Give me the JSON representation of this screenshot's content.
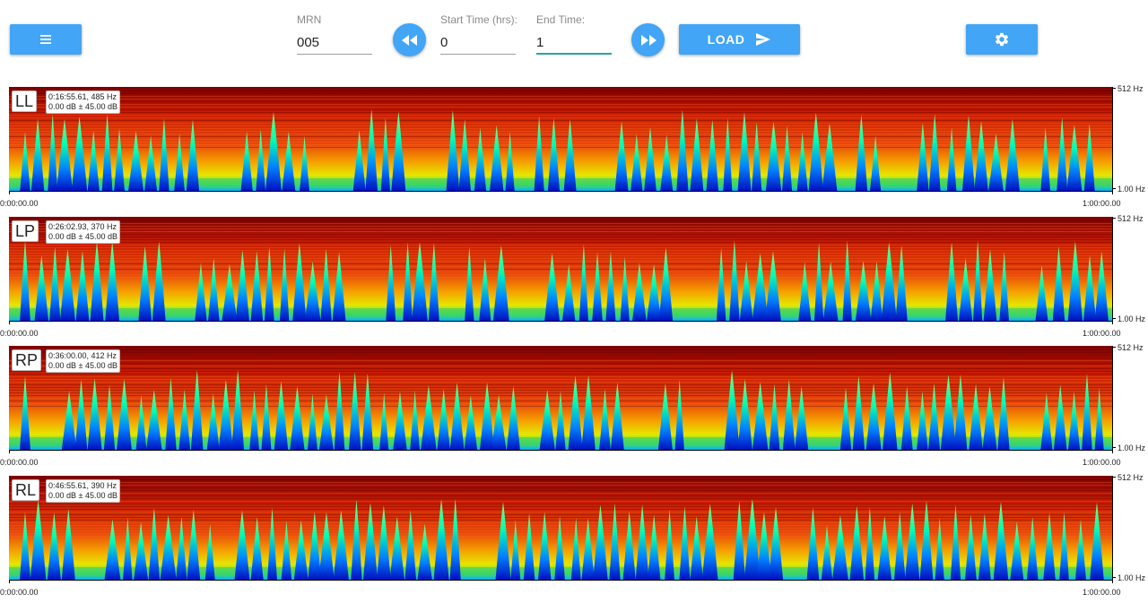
{
  "toolbar": {
    "menu_icon": "menu-icon",
    "settings_icon": "gear-icon",
    "rewind_icon": "rewind-icon",
    "fast_forward_icon": "fast-forward-icon",
    "send_icon": "send-icon",
    "load_label": "LOAD",
    "accent_color": "#42a5f5",
    "focus_color": "#26a69a",
    "mrn": {
      "label": "MRN",
      "value": "005"
    },
    "start_time": {
      "label": "Start Time (hrs):",
      "value": "0"
    },
    "end_time": {
      "label": "End Time:",
      "value": "1"
    }
  },
  "channels": [
    {
      "label": "LL",
      "readout_line1": "0:16:55.61, 485 Hz",
      "readout_line2": "0.00 dB ± 45.00 dB",
      "freq_max": "512 Hz",
      "freq_min": "1.00 Hz",
      "time_start": "0:00:00.00",
      "time_end": "1:00:00.00"
    },
    {
      "label": "LP",
      "readout_line1": "0:26:02.93, 370 Hz",
      "readout_line2": "0.00 dB ± 45.00 dB",
      "freq_max": "512 Hz",
      "freq_min": "1.00 Hz",
      "time_start": "0:00:00.00",
      "time_end": "1:00:00.00"
    },
    {
      "label": "RP",
      "readout_line1": "0:36:00.00, 412 Hz",
      "readout_line2": "0.00 dB ± 45.00 dB",
      "freq_max": "512 Hz",
      "freq_min": "1.00 Hz",
      "time_start": "0:00:00.00",
      "time_end": "1:00:00.00"
    },
    {
      "label": "RL",
      "readout_line1": "0:46:55.61, 390 Hz",
      "readout_line2": "0.00 dB ± 45.00 dB",
      "freq_max": "512 Hz",
      "freq_min": "1.00 Hz",
      "time_start": "0:00:00.00",
      "time_end": "1:00:00.00"
    }
  ]
}
